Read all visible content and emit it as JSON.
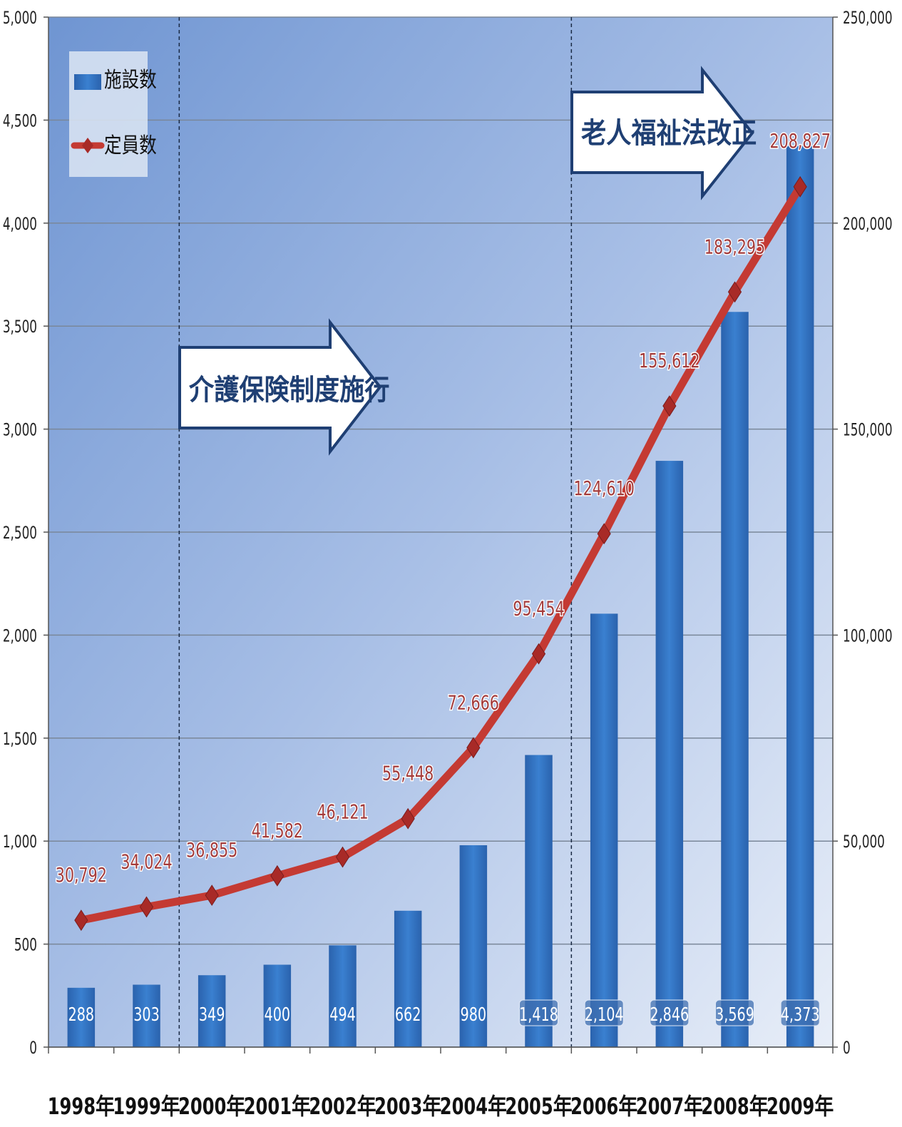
{
  "chart_data": {
    "type": "bar",
    "categories": [
      "1998年",
      "1999年",
      "2000年",
      "2001年",
      "2002年",
      "2003年",
      "2004年",
      "2005年",
      "2006年",
      "2007年",
      "2008年",
      "2009年"
    ],
    "series": [
      {
        "name": "施設数",
        "type": "bar",
        "axis": "left",
        "values": [
          288,
          303,
          349,
          400,
          494,
          662,
          980,
          1418,
          2104,
          2846,
          3569,
          4373
        ],
        "labels": [
          "288",
          "303",
          "349",
          "400",
          "494",
          "662",
          "980",
          "1,418",
          "2,104",
          "2,846",
          "3,569",
          "4,373"
        ],
        "color": "#2e6fbe"
      },
      {
        "name": "定員数",
        "type": "line",
        "axis": "right",
        "values": [
          30792,
          34024,
          36855,
          41582,
          46121,
          55448,
          72666,
          95454,
          124610,
          155612,
          183295,
          208827
        ],
        "labels": [
          "30,792",
          "34,024",
          "36,855",
          "41,582",
          "46,121",
          "55,448",
          "72,666",
          "95,454",
          "124,610",
          "155,612",
          "183,295",
          "208,827"
        ],
        "color": "#c0392b"
      }
    ],
    "y_left": {
      "range": [
        0,
        5000
      ],
      "ticks": [
        "0",
        "500",
        "1,000",
        "1,500",
        "2,000",
        "2,500",
        "3,000",
        "3,500",
        "4,000",
        "4,500",
        "5,000"
      ]
    },
    "y_right": {
      "range": [
        0,
        250000
      ],
      "ticks": [
        "0",
        "50,000",
        "100,000",
        "150,000",
        "200,000",
        "250,000"
      ]
    },
    "grid": true,
    "legend_position": "top-left",
    "annotations": [
      {
        "text": "介護保険制度施行",
        "from_category": "2000年",
        "arrow": "right"
      },
      {
        "text": "老人福祉法改正",
        "from_category": "2006年",
        "arrow": "right"
      }
    ],
    "colors": {
      "plot_bg_start": "#6f95d2",
      "plot_bg_end": "#e6ecf7",
      "bar": "#2e6fbe",
      "line": "#c0392b",
      "label_text": "#a33a3a",
      "arrow_border": "#1f3f73"
    }
  }
}
